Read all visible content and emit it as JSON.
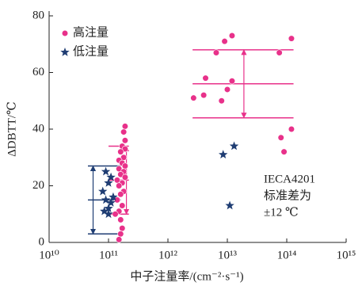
{
  "chart_data": {
    "type": "scatter",
    "x_label": "中子注量率/(cm⁻²·s⁻¹)",
    "y_label": "ΔDBTT/℃",
    "xscale": "log",
    "xlim": [
      10000000000.0,
      1000000000000000.0
    ],
    "xticks": [
      {
        "value": 10000000000.0,
        "label": "10¹⁰"
      },
      {
        "value": 100000000000.0,
        "label": "10¹¹"
      },
      {
        "value": 1000000000000.0,
        "label": "10¹²"
      },
      {
        "value": 10000000000000.0,
        "label": "10¹³"
      },
      {
        "value": 100000000000000.0,
        "label": "10¹⁴"
      },
      {
        "value": 1000000000000000.0,
        "label": "10¹⁵"
      }
    ],
    "ylim": [
      0,
      80
    ],
    "yticks": [
      0,
      20,
      40,
      60,
      80
    ],
    "legend": "upper left",
    "series": [
      {
        "name": "高注量",
        "color": "#e8318a",
        "marker": "circle",
        "x": [
          190000000000.0,
          180000000000.0,
          190000000000.0,
          170000000000.0,
          190000000000.0,
          160000000000.0,
          180000000000.0,
          150000000000.0,
          170000000000.0,
          190000000000.0,
          150000000000.0,
          180000000000.0,
          160000000000.0,
          190000000000.0,
          140000000000.0,
          170000000000.0,
          150000000000.0,
          180000000000.0,
          160000000000.0,
          140000000000.0,
          170000000000.0,
          150000000000.0,
          130000000000.0,
          160000000000.0,
          170000000000.0,
          160000000000.0,
          150000000000.0,
          2700000000000.0,
          4000000000000.0,
          4300000000000.0,
          6500000000000.0,
          9000000000000.0,
          12000000000000.0,
          8000000000000.0,
          10000000000000.0,
          12000000000000.0,
          75000000000000.0,
          120000000000000.0,
          80000000000000.0,
          90000000000000.0,
          120000000000000.0
        ],
        "values": [
          41,
          39,
          36,
          34,
          33,
          32,
          30,
          29,
          28,
          27,
          26,
          25,
          24,
          23,
          22,
          21,
          20,
          18,
          17,
          15,
          13,
          11,
          10,
          8,
          5,
          3,
          1,
          51,
          52,
          58,
          67,
          71,
          73,
          50,
          54,
          57,
          67,
          72,
          37,
          32,
          40
        ]
      },
      {
        "name": "低注量",
        "color": "#1f3d73",
        "marker": "star",
        "x": [
          90000000000.0,
          110000000000.0,
          100000000000.0,
          80000000000.0,
          120000000000.0,
          90000000000.0,
          110000000000.0,
          100000000000.0,
          85000000000.0,
          100000000000.0,
          8500000000000.0,
          13000000000000.0,
          11000000000000.0
        ],
        "values": [
          25,
          23,
          21,
          18,
          16,
          15,
          14,
          12,
          11,
          10,
          31,
          34,
          13
        ]
      }
    ],
    "bands": [
      {
        "color": "#e8318a",
        "mean": 56,
        "sd": 12,
        "x": [
          2600000000000.0,
          130000000000000.0
        ],
        "arrow_x": 19000000000000.0
      },
      {
        "color": "#e8318a",
        "mean": 22,
        "sd": 12,
        "x": [
          100000000000.0,
          220000000000.0
        ],
        "arrow_x": 200000000000.0
      },
      {
        "color": "#1f3d73",
        "mean": 15,
        "sd": 12,
        "x": [
          45000000000.0,
          160000000000.0
        ],
        "arrow_x": 55000000000.0
      }
    ],
    "annotation": [
      "IECA4201",
      "标准差为",
      "±12 ℃"
    ]
  }
}
